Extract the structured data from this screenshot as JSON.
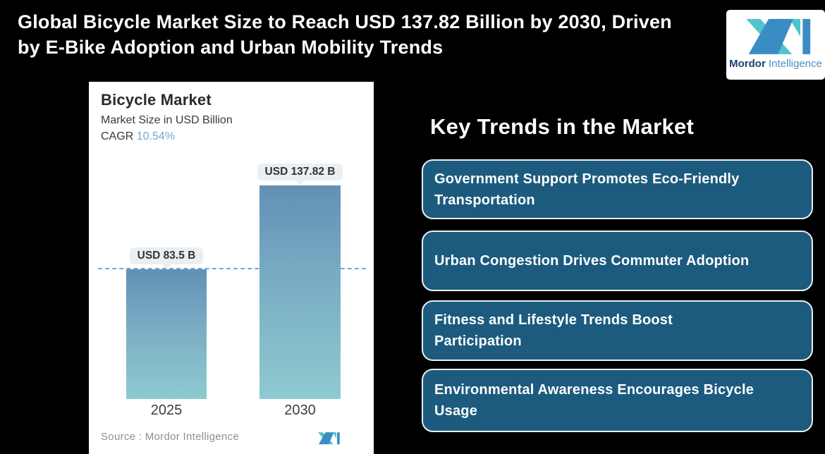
{
  "header": {
    "title": "Global Bicycle Market Size to Reach USD 137.82 Billion by 2030, Driven\nby E-Bike Adoption and Urban Mobility Trends"
  },
  "brand": {
    "name_bold": "Mordor",
    "name_light": "Intelligence"
  },
  "chart_panel": {
    "title": "Bicycle Market",
    "subtitle": "Market Size in USD Billion",
    "cagr_label": "CAGR",
    "cagr_value": "10.54%",
    "source_note": "Source :  Mordor Intelligence"
  },
  "chart_data": {
    "type": "bar",
    "title": "Bicycle Market",
    "subtitle": "Market Size in USD Billion",
    "cagr_percent": 10.54,
    "unit": "USD Billion",
    "categories": [
      "2025",
      "2030"
    ],
    "values": [
      83.5,
      137.82
    ],
    "value_labels": [
      "USD 83.5 B",
      "USD 137.82 B"
    ],
    "reference_line": 83.5,
    "ylim": [
      0,
      150
    ],
    "grid": false,
    "legend": false,
    "bar_gradient_top": "#6290b5",
    "bar_gradient_bottom": "#8ecad0"
  },
  "key_trends": {
    "heading": "Key Trends in the Market",
    "items": [
      "Government Support Promotes Eco-Friendly\nTransportation",
      "Urban Congestion Drives Commuter Adoption",
      "Fitness and Lifestyle Trends Boost\nParticipation",
      "Environmental Awareness Encourages Bicycle\nUsage"
    ]
  },
  "colors": {
    "background": "#000000",
    "card_fill": "#1c5b7e",
    "card_border": "#e9f0f4",
    "accent_teal": "#4ec5cc",
    "accent_blue": "#3a8dc4",
    "cagr_value": "#78a7ca",
    "dashed_line": "#7ba6c8",
    "callout_fill": "#e9eff2"
  }
}
